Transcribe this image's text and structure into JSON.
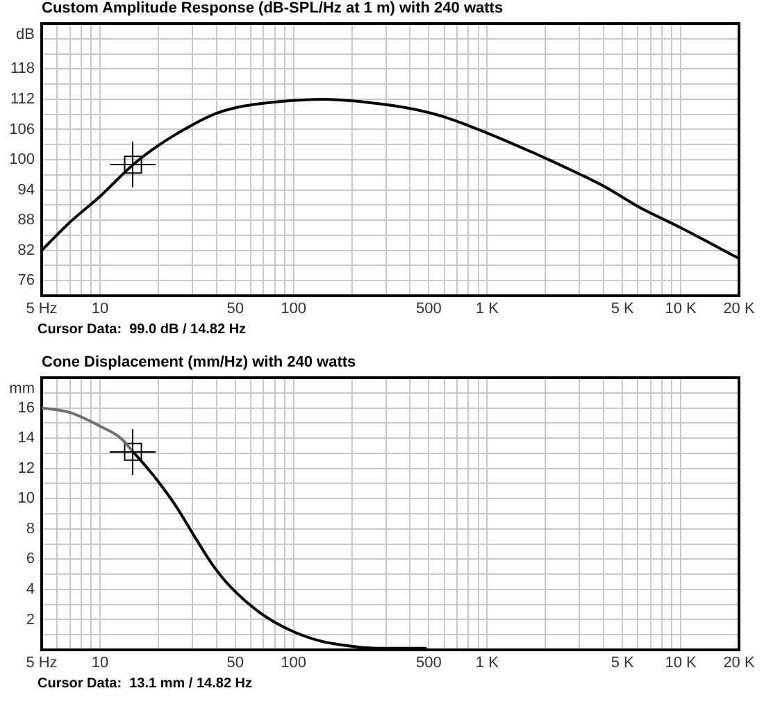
{
  "chart_data": [
    {
      "type": "line",
      "title": "Custom Amplitude Response (dB-SPL/Hz at 1 m) with 240 watts",
      "ylabel": "dB",
      "annotations": [
        "Cursor Data:  99.0 dB / 14.82 Hz"
      ],
      "log": "x",
      "grid": true,
      "xlim": [
        5,
        20000
      ],
      "xticks": [
        {
          "value": 5,
          "label": "5 Hz"
        },
        {
          "value": 6,
          "label": null
        },
        {
          "value": 7,
          "label": null
        },
        {
          "value": 8,
          "label": null
        },
        {
          "value": 9,
          "label": null
        },
        10,
        {
          "value": 20,
          "label": null
        },
        {
          "value": 30,
          "label": null
        },
        {
          "value": 40,
          "label": null
        },
        50,
        {
          "value": 60,
          "label": null
        },
        {
          "value": 70,
          "label": null
        },
        {
          "value": 80,
          "label": null
        },
        {
          "value": 90,
          "label": null
        },
        100,
        {
          "value": 200,
          "label": null
        },
        {
          "value": 300,
          "label": null
        },
        {
          "value": 400,
          "label": null
        },
        500,
        {
          "value": 600,
          "label": null
        },
        {
          "value": 700,
          "label": null
        },
        {
          "value": 800,
          "label": null
        },
        {
          "value": 900,
          "label": null
        },
        {
          "value": 1000,
          "label": "1 K"
        },
        {
          "value": 2000,
          "label": null
        },
        {
          "value": 3000,
          "label": null
        },
        {
          "value": 4000,
          "label": null
        },
        {
          "value": 5000,
          "label": "5 K"
        },
        {
          "value": 6000,
          "label": null
        },
        {
          "value": 7000,
          "label": null
        },
        {
          "value": 8000,
          "label": null
        },
        {
          "value": 9000,
          "label": null
        },
        {
          "value": 10000,
          "label": "10 K"
        },
        {
          "value": 20000,
          "label": "20 K"
        }
      ],
      "ylim": [
        73,
        127
      ],
      "yticks": [
        76,
        {
          "value": 79,
          "label": null
        },
        82,
        {
          "value": 85,
          "label": null
        },
        88,
        {
          "value": 91,
          "label": null
        },
        94,
        {
          "value": 97,
          "label": null
        },
        100,
        {
          "value": 103,
          "label": null
        },
        106,
        {
          "value": 109,
          "label": null
        },
        112,
        {
          "value": 115,
          "label": null
        },
        118,
        {
          "value": 121,
          "label": null
        },
        {
          "value": 124,
          "label": null
        }
      ],
      "series": [
        {
          "color": "#000000",
          "x": [
            5,
            7,
            10,
            14.82,
            20,
            30,
            40,
            50,
            83,
            143,
            250,
            409,
            600,
            1000,
            2000,
            3055,
            4030,
            6090,
            10000,
            20000
          ],
          "values": [
            82.0,
            87.6,
            92.7,
            99.0,
            102.8,
            106.9,
            109.2,
            110.3,
            111.5,
            112.0,
            111.3,
            110.1,
            108.5,
            105.3,
            100.3,
            97.0,
            94.7,
            90.6,
            86.5,
            80.4
          ]
        },
        {
          "type": "scatter",
          "color": "#000000",
          "marker": "square",
          "x": [
            14.82
          ],
          "values": [
            99.0
          ]
        }
      ]
    },
    {
      "type": "line",
      "title": "Cone Displacement (mm/Hz) with 240 watts",
      "ylabel": "mm",
      "annotations": [
        "Cursor Data:  13.1 mm / 14.82 Hz"
      ],
      "log": "x",
      "grid": true,
      "xlim": [
        5,
        20000
      ],
      "xticks": [
        {
          "value": 5,
          "label": "5 Hz"
        },
        {
          "value": 6,
          "label": null
        },
        {
          "value": 7,
          "label": null
        },
        {
          "value": 8,
          "label": null
        },
        {
          "value": 9,
          "label": null
        },
        10,
        {
          "value": 20,
          "label": null
        },
        {
          "value": 30,
          "label": null
        },
        {
          "value": 40,
          "label": null
        },
        50,
        {
          "value": 60,
          "label": null
        },
        {
          "value": 70,
          "label": null
        },
        {
          "value": 80,
          "label": null
        },
        {
          "value": 90,
          "label": null
        },
        100,
        {
          "value": 200,
          "label": null
        },
        {
          "value": 300,
          "label": null
        },
        {
          "value": 400,
          "label": null
        },
        500,
        {
          "value": 600,
          "label": null
        },
        {
          "value": 700,
          "label": null
        },
        {
          "value": 800,
          "label": null
        },
        {
          "value": 900,
          "label": null
        },
        {
          "value": 1000,
          "label": "1 K"
        },
        {
          "value": 2000,
          "label": null
        },
        {
          "value": 3000,
          "label": null
        },
        {
          "value": 4000,
          "label": null
        },
        {
          "value": 5000,
          "label": "5 K"
        },
        {
          "value": 6000,
          "label": null
        },
        {
          "value": 7000,
          "label": null
        },
        {
          "value": 8000,
          "label": null
        },
        {
          "value": 9000,
          "label": null
        },
        {
          "value": 10000,
          "label": "10 K"
        },
        {
          "value": 20000,
          "label": "20 K"
        }
      ],
      "ylim": [
        0,
        18
      ],
      "yticks": [
        {
          "value": 1,
          "label": null
        },
        2,
        {
          "value": 3,
          "label": null
        },
        4,
        {
          "value": 5,
          "label": null
        },
        6,
        {
          "value": 7,
          "label": null
        },
        8,
        {
          "value": 9,
          "label": null
        },
        10,
        {
          "value": 11,
          "label": null
        },
        12,
        {
          "value": 13,
          "label": null
        },
        14,
        {
          "value": 15,
          "label": null
        },
        16,
        {
          "value": 17,
          "label": null
        }
      ],
      "series": [
        {
          "color": "#707070",
          "x": [
            5,
            7,
            10,
            12.8,
            14.82
          ],
          "values": [
            16.0,
            15.7,
            14.8,
            14.0,
            13.1
          ]
        },
        {
          "color": "#000000",
          "x": [
            14.82,
            17.1,
            19.8,
            24.7,
            30.8,
            38.3,
            47.8,
            66.4,
            92.5,
            136,
            212,
            286,
            480
          ],
          "values": [
            13.1,
            12.2,
            11.2,
            9.5,
            7.5,
            5.6,
            4.1,
            2.5,
            1.4,
            0.6,
            0.2,
            0.1,
            0.1
          ]
        },
        {
          "type": "scatter",
          "color": "#000000",
          "marker": "square",
          "x": [
            14.82
          ],
          "values": [
            13.1
          ]
        }
      ]
    }
  ]
}
